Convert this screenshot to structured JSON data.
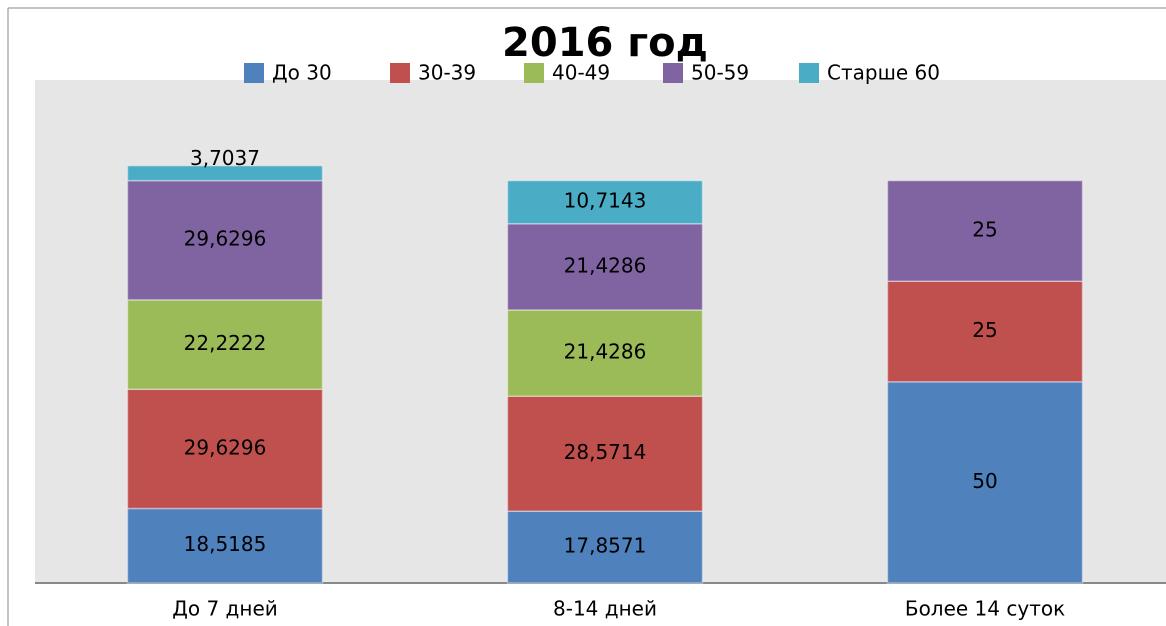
{
  "chart_data": {
    "type": "stacked_bar",
    "title": "2016 год",
    "categories": [
      "До 7 дней",
      "8-14 дней",
      "Более 14 суток"
    ],
    "series": [
      {
        "name": "До 30",
        "color": "#4f81bd",
        "values": [
          18.5185,
          17.8571,
          50
        ],
        "value_labels": [
          "18,5185",
          "17,8571",
          "50"
        ]
      },
      {
        "name": "30-39",
        "color": "#c0504d",
        "values": [
          29.6296,
          28.5714,
          25
        ],
        "value_labels": [
          "29,6296",
          "28,5714",
          "25"
        ]
      },
      {
        "name": "40-49",
        "color": "#9bbb59",
        "values": [
          22.2222,
          21.4286,
          0
        ],
        "value_labels": [
          "22,2222",
          "21,4286",
          null
        ]
      },
      {
        "name": "50-59",
        "color": "#8064a2",
        "values": [
          29.6296,
          21.4286,
          25
        ],
        "value_labels": [
          "29,6296",
          "21,4286",
          "25"
        ]
      },
      {
        "name": "Старше 60",
        "color": "#4bacc6",
        "values": [
          3.7037,
          10.7143,
          0
        ],
        "value_labels": [
          "3,7037",
          "10,7143",
          null
        ]
      }
    ],
    "ylim": [
      0,
      125
    ],
    "legend": "top"
  }
}
